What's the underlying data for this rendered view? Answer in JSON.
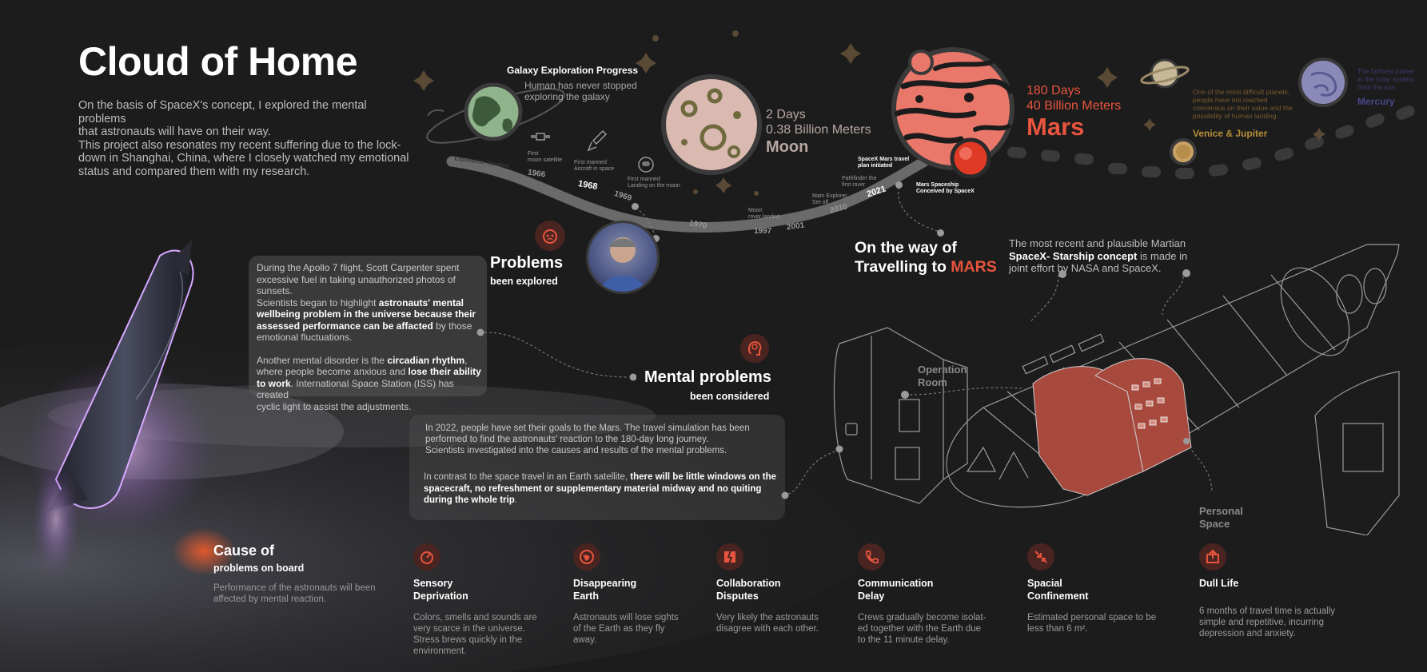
{
  "title": "Cloud of Home",
  "intro": {
    "line1": "On the basis of SpaceX's concept, I explored the mental problems",
    "line2": "that astronauts will have on their way.",
    "line3": "This project also resonates my recent suffering due to the lock-",
    "line4": "down in Shanghai, China, where I closely watched my emotional",
    "line5": "status and compared them with my research."
  },
  "galaxy": {
    "title": "Galaxy Exploration Progress",
    "line1": "Human has never stopped",
    "line2": "exploring the galaxy"
  },
  "timeline": {
    "label": "Exploration Timeline",
    "years": [
      "1966",
      "1968",
      "1969",
      "1970",
      "1997",
      "2001",
      "2010",
      "2021"
    ],
    "events": {
      "moon_satellite": [
        "First",
        "moon satellite"
      ],
      "manned_aircraft": [
        "First manned",
        "Aircraft in space"
      ],
      "moon_landing": [
        "First manned",
        "Landing on the moon"
      ],
      "moon_rover": [
        "Moon",
        "rover landed"
      ],
      "mars_explorer": [
        "Mars Explorer",
        "Set off"
      ],
      "pathfinder": [
        "Pathfinder the",
        "first rover"
      ],
      "spacex_plan": [
        "SpaceX Mars travel",
        "plan initiated"
      ],
      "mars_spaceship": [
        "Mars Spaceship",
        "Conceived by SpaceX"
      ]
    }
  },
  "moon": {
    "days": "2 Days",
    "distance": "0.38 Billion Meters",
    "name": "Moon"
  },
  "mars": {
    "days": "180 Days",
    "distance": "40 Billion Meters",
    "name": "Mars"
  },
  "venus_jupiter": {
    "desc1": "One of the most difficult planets,",
    "desc2": "people have not reached",
    "desc3": "concensus on their value and the",
    "desc4": "possibility of human landing",
    "name": "Venice & Jupiter"
  },
  "mercury": {
    "desc1": "The farthest planet",
    "desc2": "in the solar system",
    "desc3": "from the sun.",
    "name": "Mercury"
  },
  "problems": {
    "title": "Problems",
    "subtitle": "been explored"
  },
  "apollo_card": {
    "p1_a": "During the Apollo 7 flight, Scott Carpenter spent",
    "p1_b": "excessive fuel in taking unauthorized photos of sunsets.",
    "p1_c": "Scientists began to highlight ",
    "p1_bold1": "astronauts' mental",
    "p1_bold2": "wellbeing problem in the universe because their",
    "p1_bold3": "assessed performance can be affacted",
    "p1_d": " by those",
    "p1_e": "emotional fluctuations.",
    "p2_a": "Another mental disorder is the ",
    "p2_bold1": "circadian rhythm",
    "p2_b": ",",
    "p2_c": "where people become anxious and ",
    "p2_bold2": "lose their ability",
    "p2_bold3": "to work",
    "p2_d": ". International Space Station (ISS) has created",
    "p2_e": "cyclic light to assist the adjustments."
  },
  "mental": {
    "title": "Mental problems",
    "subtitle": "been considered"
  },
  "travel_card": {
    "l1": "In 2022, people have set their goals to the Mars. The travel simulation has been",
    "l2": "performed to find the astronauts' reaction to the 180-day long journey.",
    "l3": "Scientists investigated into the causes and results of the mental problems.",
    "l4_a": "In contrast to the space travel in an Earth satellite, ",
    "l4_bold": "there will be little windows on the",
    "l5_bold": "spacecraft, no refreshment or supplementary material midway and no quiting",
    "l6_bold": "during the whole trip",
    "l6_b": "."
  },
  "way_to_mars": {
    "line1": "On the way of",
    "line2_a": "Travelling to ",
    "line2_b": "MARS"
  },
  "starship": {
    "line1": "The most recent and plausible Martian",
    "bold": "SpaceX- Starship concept",
    "line2_rest": " is made in",
    "line3": "joint effort by NASA and SpaceX."
  },
  "ship_labels": {
    "operation_1": "Operation",
    "operation_2": "Room",
    "personal_1": "Personal",
    "personal_2": "Space"
  },
  "cause": {
    "title": "Cause of",
    "subtitle": "problems on board",
    "desc1": "Performance of the astronauts will been",
    "desc2": "affected by mental reaction."
  },
  "categories": [
    {
      "icon": "sensory-icon",
      "title1": "Sensory",
      "title2": "Deprivation",
      "desc": [
        "Colors, smells and sounds are",
        "very scarce in the universe.",
        "Stress brews quickly in the",
        "environment."
      ]
    },
    {
      "icon": "earth-icon",
      "title1": "Disappearing",
      "title2": "Earth",
      "desc": [
        "Astronauts will lose sights",
        "of the Earth as they fly",
        "away."
      ]
    },
    {
      "icon": "broken-icon",
      "title1": "Collaboration",
      "title2": "Disputes",
      "desc": [
        "Very likely the astronauts",
        "disagree with each other."
      ]
    },
    {
      "icon": "phone-icon",
      "title1": "Communication",
      "title2": "Delay",
      "desc": [
        "Crews gradually become isolat-",
        "ed together with the Earth due",
        "to the 11 minute delay."
      ]
    },
    {
      "icon": "shrink-icon",
      "title1": "Spacial",
      "title2": "Confinement",
      "desc": [
        "Estimated personal space to be",
        "less than 6 m²."
      ]
    },
    {
      "icon": "export-icon",
      "title1": "Dull Life",
      "title2": "",
      "desc": [
        "6 months of travel time is actually",
        "simple and repetitive, incurring",
        "depression and anxiety."
      ]
    }
  ],
  "colors": {
    "accent": "#e8553e",
    "mars_body": "#e9776a",
    "gold": "#b58f38",
    "mercury": "#6a66a8",
    "bg": "#1c1c1c"
  }
}
